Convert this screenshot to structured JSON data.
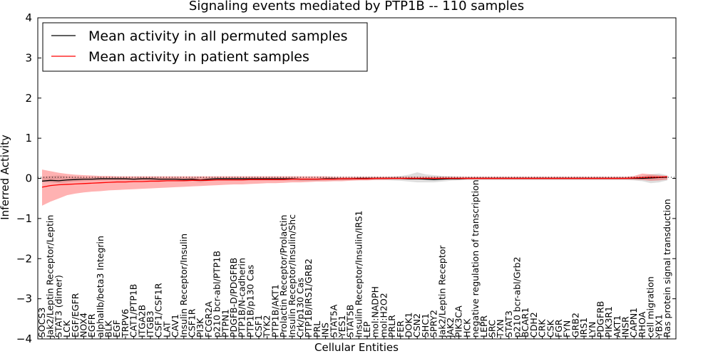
{
  "chart_data": {
    "type": "line",
    "title": "Signaling events mediated by PTP1B -- 110 samples",
    "xlabel": "Cellular Entities",
    "ylabel": "Inferred Activity",
    "ylim": [
      -4,
      4
    ],
    "yticks": [
      -4,
      -3,
      -2,
      -1,
      0,
      1,
      2,
      3,
      4
    ],
    "legend_position": "top-left",
    "categories": [
      "SOCS3",
      "Jak2/Leptin Receptor/Leptin",
      "STAT3 (dimer)",
      "LCK",
      "EGF/EGFR",
      "NOX4",
      "EGFR",
      "alphaIIb/beta3 Integrin",
      "BLK",
      "EGF",
      "TRPV6",
      "CAT1/PTP1B",
      "ITGA2B",
      "ITGB3",
      "CSF1/CSF1R",
      "LAT",
      "CAV1",
      "Insulin Receptor/Insulin",
      "CSF1R",
      "PI3K",
      "FCGR2A",
      "p210 bcr-abl/PTP1B",
      "PTPN1",
      "PDGFB-D/PDGFRB",
      "PTP1B/N-cadherin",
      "PTP1B/p130 Cas",
      "CSF1",
      "TYK2",
      "PTP1B/AKT1",
      "Prolactin Receptor/Prolactin",
      "Insulin Receptor/Insulin/Shc",
      "Crk/p130 Cas",
      "PTP1B/IRS1/GRB2",
      "PRL",
      "INS",
      "STAT5A",
      "YES1",
      "STAT5B",
      "Insulin Receptor/Insulin/IRS1",
      "LEP",
      "mol:NADPH",
      "mol:H2O2",
      "PRLR",
      "FER",
      "DOK1",
      "CSN2",
      "SHC1",
      "SPRY2",
      "Jak2/Leptin Receptor",
      "JAK2",
      "PIK3CA",
      "HCK",
      "negative regulation of transcription",
      "LEPR",
      "SRC",
      "TXN",
      "STAT3",
      "p210 bcr-abl/Grb2",
      "BCAR1",
      "CDH2",
      "CRK",
      "CSK",
      "FGR",
      "FYN",
      "GRB2",
      "IRS1",
      "LYN",
      "PDGFRB",
      "PIK3R1",
      "AKT1",
      "INSR",
      "CAPN1",
      "RHOA",
      "cell migration",
      "YBX1",
      "Ras protein signal transduction"
    ],
    "series": [
      {
        "name": "Mean activity in all permuted samples",
        "color": "#000000",
        "values": [
          -0.07,
          -0.05,
          -0.06,
          -0.04,
          -0.03,
          -0.02,
          -0.02,
          -0.01,
          -0.01,
          -0.01,
          -0.01,
          -0.02,
          -0.01,
          -0.01,
          -0.02,
          -0.02,
          -0.02,
          -0.03,
          -0.02,
          -0.04,
          -0.02,
          -0.01,
          -0.01,
          -0.01,
          -0.01,
          -0.01,
          -0.01,
          -0.01,
          -0.01,
          -0.01,
          -0.01,
          -0.02,
          -0.02,
          -0.02,
          -0.01,
          -0.01,
          -0.01,
          -0.01,
          0.0,
          0.0,
          0.0,
          0.0,
          0.0,
          0.0,
          -0.01,
          -0.01,
          -0.02,
          -0.03,
          -0.02,
          -0.01,
          -0.01,
          0.0,
          0.0,
          0.0,
          0.0,
          0.0,
          0.0,
          0.0,
          0.0,
          0.0,
          0.0,
          0.0,
          0.0,
          0.0,
          0.0,
          0.0,
          0.0,
          0.0,
          0.0,
          0.0,
          0.0,
          0.0,
          0.0,
          0.01,
          0.02,
          0.03
        ],
        "band": {
          "lower": [
            -0.08,
            -0.1,
            -0.12,
            -0.1,
            -0.08,
            -0.07,
            -0.06,
            -0.06,
            -0.05,
            -0.05,
            -0.05,
            -0.05,
            -0.05,
            -0.05,
            -0.06,
            -0.06,
            -0.06,
            -0.07,
            -0.06,
            -0.1,
            -0.06,
            -0.05,
            -0.05,
            -0.05,
            -0.05,
            -0.05,
            -0.05,
            -0.05,
            -0.05,
            -0.05,
            -0.05,
            -0.06,
            -0.06,
            -0.06,
            -0.05,
            -0.05,
            -0.05,
            -0.04,
            -0.04,
            -0.04,
            -0.04,
            -0.04,
            -0.05,
            -0.06,
            -0.08,
            -0.1,
            -0.1,
            -0.1,
            -0.08,
            -0.06,
            -0.05,
            -0.04,
            -0.04,
            -0.04,
            -0.04,
            -0.04,
            -0.04,
            -0.04,
            -0.04,
            -0.04,
            -0.04,
            -0.04,
            -0.04,
            -0.04,
            -0.04,
            -0.04,
            -0.04,
            -0.04,
            -0.04,
            -0.04,
            -0.04,
            -0.05,
            -0.07,
            -0.12,
            -0.1,
            -0.05
          ],
          "upper": [
            0.04,
            0.06,
            0.07,
            0.05,
            0.04,
            0.03,
            0.03,
            0.03,
            0.02,
            0.02,
            0.02,
            0.02,
            0.02,
            0.02,
            0.02,
            0.02,
            0.02,
            0.02,
            0.02,
            0.03,
            0.02,
            0.02,
            0.02,
            0.02,
            0.02,
            0.02,
            0.02,
            0.02,
            0.02,
            0.02,
            0.02,
            0.02,
            0.02,
            0.02,
            0.02,
            0.02,
            0.02,
            0.02,
            0.03,
            0.03,
            0.03,
            0.03,
            0.04,
            0.06,
            0.09,
            0.15,
            0.1,
            0.08,
            0.06,
            0.05,
            0.04,
            0.03,
            0.03,
            0.03,
            0.03,
            0.03,
            0.03,
            0.03,
            0.03,
            0.03,
            0.03,
            0.03,
            0.03,
            0.03,
            0.03,
            0.03,
            0.03,
            0.03,
            0.03,
            0.03,
            0.03,
            0.04,
            0.06,
            0.1,
            0.12,
            0.08
          ]
        }
      },
      {
        "name": "Mean activity in patient samples",
        "color": "#ff0000",
        "values": [
          -0.22,
          -0.18,
          -0.16,
          -0.15,
          -0.14,
          -0.13,
          -0.12,
          -0.11,
          -0.1,
          -0.09,
          -0.09,
          -0.08,
          -0.08,
          -0.07,
          -0.07,
          -0.06,
          -0.06,
          -0.06,
          -0.05,
          -0.05,
          -0.05,
          -0.04,
          -0.04,
          -0.04,
          -0.04,
          -0.03,
          -0.03,
          -0.03,
          -0.03,
          -0.03,
          -0.02,
          -0.02,
          -0.02,
          -0.02,
          -0.02,
          -0.02,
          -0.01,
          -0.01,
          -0.01,
          -0.01,
          0.0,
          0.0,
          0.0,
          0.0,
          0.0,
          0.0,
          0.0,
          0.0,
          0.0,
          0.0,
          0.0,
          0.0,
          0.0,
          0.0,
          0.0,
          0.0,
          0.0,
          0.0,
          0.0,
          0.0,
          0.0,
          0.0,
          0.0,
          0.0,
          0.0,
          0.0,
          0.0,
          0.0,
          0.0,
          0.0,
          0.0,
          0.01,
          0.02,
          0.03,
          0.03,
          0.04
        ],
        "band": {
          "lower": [
            -0.68,
            -0.58,
            -0.5,
            -0.42,
            -0.38,
            -0.35,
            -0.33,
            -0.32,
            -0.3,
            -0.29,
            -0.28,
            -0.27,
            -0.26,
            -0.25,
            -0.24,
            -0.23,
            -0.22,
            -0.21,
            -0.2,
            -0.19,
            -0.18,
            -0.17,
            -0.16,
            -0.15,
            -0.15,
            -0.14,
            -0.13,
            -0.12,
            -0.12,
            -0.11,
            -0.1,
            -0.1,
            -0.09,
            -0.08,
            -0.08,
            -0.07,
            -0.07,
            -0.06,
            -0.05,
            -0.05,
            -0.04,
            -0.04,
            -0.03,
            -0.03,
            -0.03,
            -0.03,
            -0.03,
            -0.03,
            -0.03,
            -0.03,
            -0.03,
            -0.03,
            -0.03,
            -0.03,
            -0.03,
            -0.03,
            -0.03,
            -0.03,
            -0.03,
            -0.03,
            -0.03,
            -0.03,
            -0.03,
            -0.03,
            -0.03,
            -0.03,
            -0.03,
            -0.03,
            -0.03,
            -0.03,
            -0.03,
            -0.03,
            -0.04,
            -0.06,
            -0.05,
            -0.03
          ],
          "upper": [
            0.22,
            0.18,
            0.14,
            0.11,
            0.09,
            0.08,
            0.07,
            0.06,
            0.06,
            0.05,
            0.05,
            0.05,
            0.05,
            0.05,
            0.05,
            0.05,
            0.05,
            0.05,
            0.05,
            0.05,
            0.05,
            0.05,
            0.05,
            0.05,
            0.05,
            0.05,
            0.05,
            0.05,
            0.05,
            0.05,
            0.05,
            0.05,
            0.05,
            0.05,
            0.05,
            0.04,
            0.04,
            0.04,
            0.04,
            0.04,
            0.04,
            0.04,
            0.04,
            0.04,
            0.04,
            0.04,
            0.04,
            0.04,
            0.04,
            0.04,
            0.04,
            0.04,
            0.04,
            0.04,
            0.04,
            0.04,
            0.04,
            0.04,
            0.04,
            0.04,
            0.04,
            0.04,
            0.04,
            0.04,
            0.04,
            0.04,
            0.04,
            0.04,
            0.04,
            0.04,
            0.04,
            0.06,
            0.12,
            0.1,
            0.08,
            0.06
          ]
        }
      }
    ]
  }
}
